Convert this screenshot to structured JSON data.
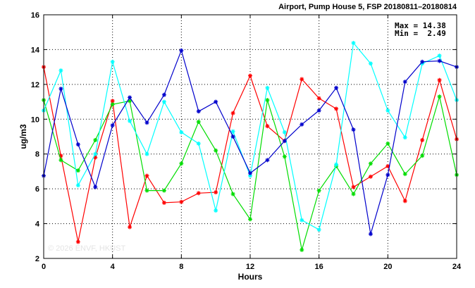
{
  "chart_data": {
    "type": "line",
    "title": "Airport, Pump House 5, FSP 20180811–20180814",
    "xlabel": "Hours",
    "ylabel": "ug/m3",
    "xlim": [
      0,
      24
    ],
    "ylim": [
      2,
      16
    ],
    "xticks": [
      0,
      4,
      8,
      12,
      16,
      20,
      24
    ],
    "yticks": [
      2,
      4,
      6,
      8,
      10,
      12,
      14,
      16
    ],
    "grid": true,
    "stats": {
      "max_label": "Max = 14.38",
      "min_label": "Min =  2.49"
    },
    "watermark": "© 2026 ENVF, HKUST",
    "series": [
      {
        "color": "#ff0000",
        "x": [
          0,
          1,
          2,
          3,
          4,
          5,
          6,
          7,
          8,
          9,
          10,
          11,
          12,
          13,
          14,
          15,
          16,
          17,
          18,
          19,
          20,
          21,
          22,
          23,
          24
        ],
        "y": [
          13.0,
          7.9,
          2.95,
          7.8,
          11.05,
          3.8,
          6.75,
          5.2,
          5.25,
          5.75,
          5.8,
          10.35,
          12.5,
          9.6,
          8.75,
          12.3,
          11.2,
          10.6,
          6.1,
          6.7,
          7.3,
          5.3,
          8.8,
          12.25,
          8.85
        ]
      },
      {
        "color": "#00dd00",
        "x": [
          0,
          1,
          2,
          3,
          4,
          5,
          6,
          7,
          8,
          9,
          10,
          11,
          12,
          13,
          14,
          15,
          16,
          17,
          18,
          19,
          20,
          21,
          22,
          23,
          24
        ],
        "y": [
          11.1,
          7.65,
          7.05,
          8.8,
          10.85,
          11.05,
          5.9,
          5.9,
          7.45,
          9.85,
          8.2,
          5.7,
          4.25,
          11.1,
          7.85,
          2.49,
          5.9,
          7.3,
          5.7,
          7.45,
          8.6,
          6.85,
          7.9,
          11.3,
          6.8
        ]
      },
      {
        "color": "#00ffff",
        "x": [
          0,
          1,
          2,
          3,
          4,
          5,
          6,
          7,
          8,
          9,
          10,
          11,
          12,
          13,
          14,
          15,
          16,
          17,
          18,
          19,
          20,
          21,
          22,
          23,
          24
        ],
        "y": [
          10.5,
          12.8,
          6.2,
          8.0,
          13.3,
          9.9,
          8.0,
          11.0,
          9.25,
          8.6,
          4.75,
          9.3,
          6.75,
          11.8,
          9.25,
          4.2,
          3.65,
          7.4,
          14.38,
          13.2,
          10.5,
          8.95,
          13.2,
          13.65,
          11.1
        ]
      },
      {
        "color": "#0000cc",
        "x": [
          0,
          1,
          2,
          3,
          4,
          5,
          6,
          7,
          8,
          9,
          10,
          11,
          12,
          13,
          14,
          15,
          16,
          17,
          18,
          19,
          20,
          21,
          22,
          23,
          24
        ],
        "y": [
          6.75,
          11.75,
          8.55,
          6.1,
          9.65,
          11.25,
          9.8,
          11.4,
          13.95,
          10.45,
          11.0,
          9.0,
          6.9,
          7.65,
          8.75,
          9.7,
          10.5,
          11.8,
          9.4,
          3.4,
          6.8,
          12.15,
          13.3,
          13.35,
          13.0
        ]
      }
    ]
  }
}
